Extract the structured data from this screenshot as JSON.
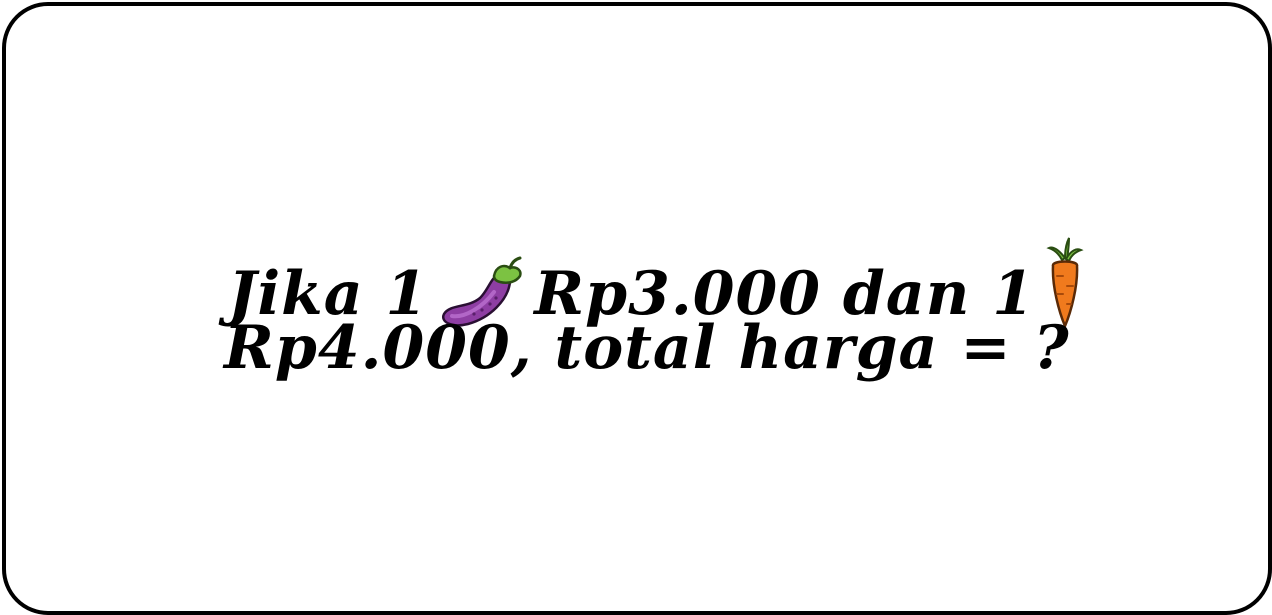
{
  "question": {
    "line1": {
      "part1": "Jika 1",
      "icon1": "eggplant-icon",
      "part2": "Rp3.000 dan 1",
      "icon2": "carrot-icon"
    },
    "line2": {
      "text": "Rp4.000, total harga = ?"
    }
  },
  "colors": {
    "border": "#000000",
    "text": "#000000",
    "eggplant": "#8e3ea3",
    "carrot": "#f07a1d",
    "leaf": "#7cc242"
  }
}
